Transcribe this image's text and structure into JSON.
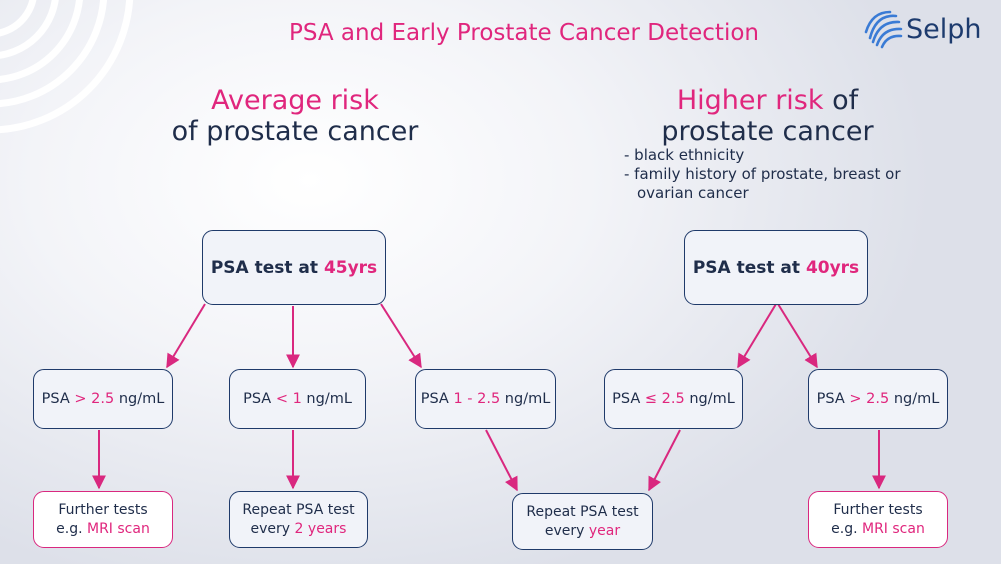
{
  "title": "PSA and Early Prostate Cancer Detection",
  "logo": {
    "text": "Selph"
  },
  "average": {
    "heading_pink": "Average risk",
    "heading_dark": "of prostate cancer",
    "test": {
      "prefix": "PSA test at ",
      "age": "45yrs"
    },
    "results": [
      {
        "prefix": "PSA ",
        "value": "> 2.5",
        "suffix": " ng/mL"
      },
      {
        "prefix": "PSA ",
        "value": "< 1",
        "suffix": " ng/mL"
      },
      {
        "prefix": "PSA ",
        "value": "1 - 2.5",
        "suffix": " ng/mL"
      }
    ],
    "outcomes": [
      {
        "line1": "Further tests",
        "line2_prefix": "e.g. ",
        "line2_value": "MRI scan"
      },
      {
        "line1": "Repeat PSA test",
        "line2_prefix": "every ",
        "line2_value": "2 years"
      }
    ]
  },
  "shared_outcome": {
    "line1": "Repeat PSA test",
    "line2_prefix": "every ",
    "line2_value": "year"
  },
  "higher": {
    "heading_pink": "Higher risk",
    "heading_mid": " of",
    "heading_dark": "prostate cancer",
    "factors": [
      "- black ethnicity",
      "- family history of prostate, breast or ovarian cancer"
    ],
    "test": {
      "prefix": "PSA test at ",
      "age": "40yrs"
    },
    "results": [
      {
        "prefix": "PSA ",
        "value": "≤ 2.5",
        "suffix": " ng/mL"
      },
      {
        "prefix": "PSA ",
        "value": "> 2.5",
        "suffix": " ng/mL"
      }
    ],
    "outcomes": [
      {
        "line1": "Further tests",
        "line2_prefix": "e.g. ",
        "line2_value": "MRI scan"
      }
    ]
  },
  "colors": {
    "accent": "#e0267d",
    "navy": "#1f3a6a",
    "text": "#1f2d4a"
  },
  "icons": [
    "concentric-arcs-decoration",
    "selph-logo-mark"
  ]
}
